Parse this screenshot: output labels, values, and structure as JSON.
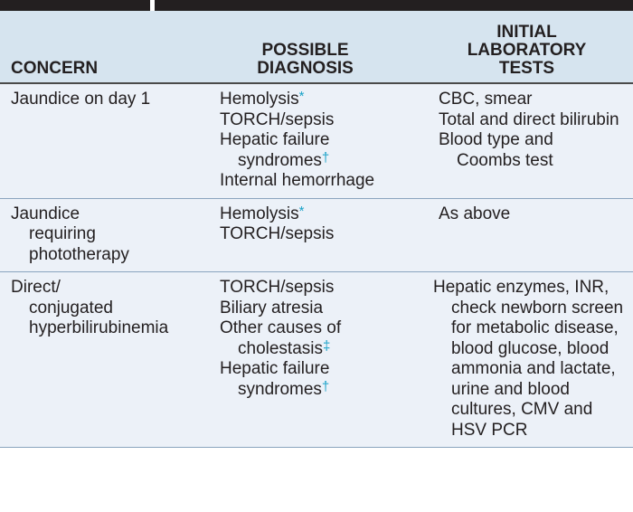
{
  "headers": {
    "concern": "CONCERN",
    "diagnosis": [
      "POSSIBLE",
      "DIAGNOSIS"
    ],
    "tests": [
      "INITIAL",
      "LABORATORY",
      "TESTS"
    ]
  },
  "rows": [
    {
      "concern": [
        "Jaundice on day 1"
      ],
      "diagnosis": [
        {
          "text": "Hemolysis",
          "mark": "*"
        },
        {
          "text": "TORCH/sepsis",
          "mark": ""
        },
        {
          "text": "Hepatic failure syndromes",
          "mark": "†"
        },
        {
          "text": "Internal hemorrhage",
          "mark": ""
        }
      ],
      "tests": [
        "CBC, smear",
        "Total and direct bilirubin",
        "Blood type and Coombs test"
      ]
    },
    {
      "concern": [
        "Jaundice requiring phototherapy"
      ],
      "diagnosis": [
        {
          "text": "Hemolysis",
          "mark": "*"
        },
        {
          "text": "TORCH/sepsis",
          "mark": ""
        }
      ],
      "tests": [
        "As above"
      ]
    },
    {
      "concern": [
        "Direct/ conjugated hyperbilirubinemia"
      ],
      "diagnosis": [
        {
          "text": "TORCH/sepsis",
          "mark": ""
        },
        {
          "text": "Biliary atresia",
          "mark": ""
        },
        {
          "text": "Other causes of cholestasis",
          "mark": "‡"
        },
        {
          "text": "Hepatic failure syndromes",
          "mark": "†"
        }
      ],
      "tests": [
        "Hepatic enzymes, INR, check newborn screen for metabolic disease, blood glucose, blood ammonia and lactate, urine and blood cultures, CMV and HSV PCR"
      ]
    }
  ]
}
